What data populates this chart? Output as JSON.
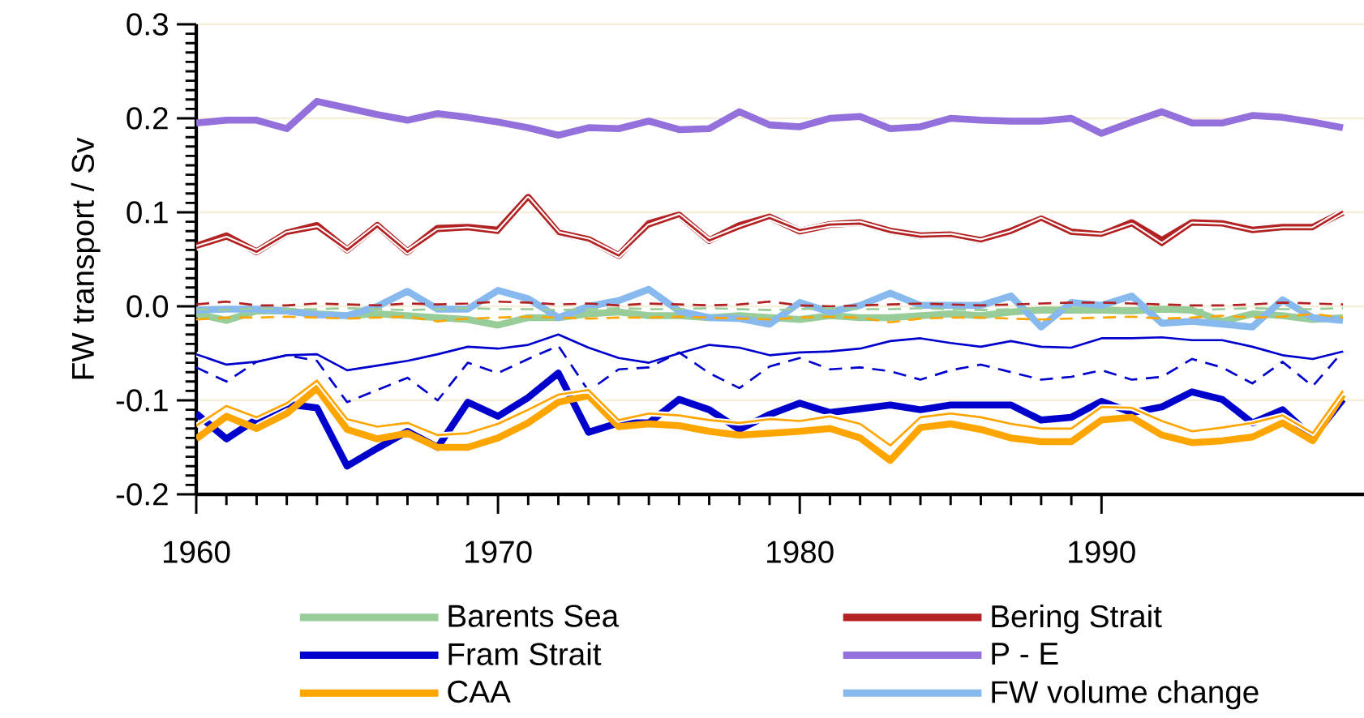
{
  "chart_data": {
    "type": "line",
    "ylabel": "FW transport / Sv",
    "x": [
      1960,
      1961,
      1962,
      1963,
      1964,
      1965,
      1966,
      1967,
      1968,
      1969,
      1970,
      1971,
      1972,
      1973,
      1974,
      1975,
      1976,
      1977,
      1978,
      1979,
      1980,
      1981,
      1982,
      1983,
      1984,
      1985,
      1986,
      1987,
      1988,
      1989,
      1990,
      1991,
      1992,
      1993,
      1994,
      1995,
      1996,
      1997,
      1998
    ],
    "xlim": [
      1960,
      1998.7
    ],
    "ylim": [
      -0.2,
      0.3
    ],
    "xticks": [
      1960,
      1970,
      1980,
      1990
    ],
    "yticks": [
      {
        "value": -0.2,
        "label": "-0.2"
      },
      {
        "value": -0.1,
        "label": "-0.1"
      },
      {
        "value": 0,
        "label": "0.0"
      },
      {
        "value": 0.1,
        "label": "0.1"
      },
      {
        "value": 0.2,
        "label": "0.2"
      },
      {
        "value": 0.3,
        "label": "0.3"
      }
    ],
    "grid": "y",
    "legend": "bottom",
    "series": [
      {
        "name": "Barents Sea",
        "color": "#98cc98",
        "values": [
          -0.008,
          -0.015,
          -0.005,
          -0.005,
          -0.008,
          -0.01,
          -0.008,
          -0.01,
          -0.012,
          -0.014,
          -0.02,
          -0.012,
          -0.012,
          -0.008,
          -0.006,
          -0.01,
          -0.01,
          -0.012,
          -0.01,
          -0.012,
          -0.014,
          -0.01,
          -0.012,
          -0.012,
          -0.01,
          -0.008,
          -0.01,
          -0.006,
          -0.004,
          -0.004,
          -0.004,
          -0.005,
          -0.003,
          -0.004,
          -0.016,
          -0.008,
          -0.01,
          -0.014,
          -0.012
        ]
      },
      {
        "name": "Bering Strait",
        "color": "#b22222",
        "values": [
          0.064,
          0.075,
          0.058,
          0.078,
          0.086,
          0.06,
          0.086,
          0.058,
          0.083,
          0.084,
          0.081,
          0.116,
          0.078,
          0.071,
          0.054,
          0.088,
          0.097,
          0.07,
          0.086,
          0.095,
          0.08,
          0.087,
          0.089,
          0.08,
          0.075,
          0.076,
          0.07,
          0.08,
          0.093,
          0.079,
          0.076,
          0.089,
          0.07,
          0.089,
          0.088,
          0.081,
          0.084,
          0.084,
          0.1
        ]
      },
      {
        "name": "Fram Strait",
        "color": "#0000cd",
        "values": [
          -0.114,
          -0.141,
          -0.12,
          -0.104,
          -0.108,
          -0.17,
          -0.151,
          -0.133,
          -0.15,
          -0.102,
          -0.117,
          -0.097,
          -0.071,
          -0.134,
          -0.124,
          -0.124,
          -0.099,
          -0.11,
          -0.131,
          -0.115,
          -0.103,
          -0.113,
          -0.109,
          -0.105,
          -0.11,
          -0.105,
          -0.105,
          -0.105,
          -0.121,
          -0.118,
          -0.101,
          -0.113,
          -0.107,
          -0.091,
          -0.099,
          -0.124,
          -0.11,
          -0.14,
          -0.099
        ]
      },
      {
        "name": "P - E",
        "color": "#9370db",
        "values": [
          0.195,
          0.198,
          0.198,
          0.189,
          0.218,
          0.211,
          0.204,
          0.198,
          0.205,
          0.201,
          0.196,
          0.19,
          0.182,
          0.19,
          0.189,
          0.197,
          0.188,
          0.189,
          0.207,
          0.193,
          0.191,
          0.2,
          0.202,
          0.189,
          0.191,
          0.2,
          0.198,
          0.197,
          0.197,
          0.2,
          0.184,
          0.196,
          0.207,
          0.195,
          0.195,
          0.203,
          0.201,
          0.196,
          0.19
        ]
      },
      {
        "name": "CAA",
        "color": "#ffa500",
        "values": [
          -0.141,
          -0.117,
          -0.13,
          -0.114,
          -0.087,
          -0.131,
          -0.141,
          -0.135,
          -0.15,
          -0.15,
          -0.14,
          -0.124,
          -0.102,
          -0.095,
          -0.128,
          -0.125,
          -0.127,
          -0.133,
          -0.137,
          -0.135,
          -0.133,
          -0.13,
          -0.14,
          -0.164,
          -0.129,
          -0.125,
          -0.131,
          -0.14,
          -0.144,
          -0.144,
          -0.121,
          -0.118,
          -0.137,
          -0.145,
          -0.143,
          -0.139,
          -0.124,
          -0.143,
          -0.094
        ]
      },
      {
        "name": "FW volume change",
        "color": "#87b9ef",
        "values": [
          -0.004,
          -0.003,
          -0.003,
          -0.005,
          -0.009,
          -0.01,
          0.0,
          0.016,
          -0.003,
          -0.003,
          0.017,
          0.008,
          -0.012,
          0.0,
          0.006,
          0.018,
          -0.005,
          -0.012,
          -0.013,
          -0.019,
          0.004,
          -0.006,
          0.001,
          0.014,
          0.001,
          0.001,
          0.001,
          0.011,
          -0.022,
          0.004,
          0.001,
          0.011,
          -0.018,
          -0.016,
          -0.019,
          -0.022,
          0.007,
          -0.012,
          -0.015
        ]
      },
      {
        "color": "#b22222",
        "values": [
          0.062,
          0.072,
          0.058,
          0.077,
          0.083,
          0.06,
          0.085,
          0.058,
          0.08,
          0.082,
          0.078,
          0.114,
          0.077,
          0.07,
          0.054,
          0.085,
          0.096,
          0.07,
          0.083,
          0.094,
          0.081,
          0.087,
          0.088,
          0.079,
          0.074,
          0.075,
          0.069,
          0.078,
          0.092,
          0.077,
          0.075,
          0.086,
          0.065,
          0.087,
          0.086,
          0.079,
          0.082,
          0.082,
          0.101
        ]
      },
      {
        "color": "#b22222",
        "line_style": "dashed",
        "values": [
          0.002,
          0.005,
          0.001,
          0.001,
          0.003,
          0.002,
          0.001,
          0.003,
          0.002,
          0.003,
          0.005,
          0.004,
          0.002,
          0.003,
          0.001,
          0.003,
          0.002,
          0.001,
          0.002,
          0.005,
          0.001,
          0.0,
          0.001,
          0.002,
          0.003,
          0.002,
          0.001,
          0.002,
          0.003,
          0.004,
          0.004,
          0.003,
          0.002,
          0.001,
          0.001,
          0.002,
          0.004,
          0.003,
          0.002
        ]
      },
      {
        "color": "#98cc98",
        "line_style": "dashed",
        "values": [
          -0.003,
          -0.004,
          -0.002,
          -0.003,
          -0.003,
          -0.002,
          -0.003,
          -0.004,
          -0.003,
          -0.002,
          -0.003,
          -0.003,
          -0.004,
          -0.003,
          -0.002,
          -0.003,
          -0.003,
          -0.002,
          -0.003,
          -0.004,
          -0.003,
          -0.002,
          -0.003,
          -0.003,
          -0.002,
          -0.003,
          -0.004,
          -0.003,
          -0.002,
          -0.003,
          -0.003,
          -0.002,
          -0.003,
          -0.004,
          -0.003,
          -0.002,
          -0.003,
          -0.003,
          -0.002
        ]
      },
      {
        "color": "#ffa500",
        "line_style": "dashed",
        "values": [
          -0.014,
          -0.012,
          -0.012,
          -0.011,
          -0.012,
          -0.013,
          -0.012,
          -0.011,
          -0.016,
          -0.013,
          -0.012,
          -0.011,
          -0.012,
          -0.013,
          -0.012,
          -0.012,
          -0.011,
          -0.012,
          -0.013,
          -0.014,
          -0.012,
          -0.011,
          -0.012,
          -0.017,
          -0.013,
          -0.012,
          -0.012,
          -0.013,
          -0.014,
          -0.013,
          -0.012,
          -0.011,
          -0.013,
          -0.012,
          -0.01,
          -0.012,
          -0.011,
          -0.008,
          -0.012
        ]
      },
      {
        "color": "#0000cd",
        "values": [
          -0.051,
          -0.062,
          -0.059,
          -0.052,
          -0.051,
          -0.068,
          -0.063,
          -0.058,
          -0.051,
          -0.043,
          -0.045,
          -0.041,
          -0.03,
          -0.044,
          -0.055,
          -0.06,
          -0.05,
          -0.041,
          -0.044,
          -0.052,
          -0.049,
          -0.048,
          -0.045,
          -0.037,
          -0.034,
          -0.039,
          -0.043,
          -0.037,
          -0.043,
          -0.044,
          -0.034,
          -0.034,
          -0.033,
          -0.036,
          -0.036,
          -0.043,
          -0.052,
          -0.056,
          -0.048
        ]
      },
      {
        "color": "#0000cd",
        "line_style": "dashed",
        "values": [
          -0.065,
          -0.08,
          -0.059,
          -0.052,
          -0.058,
          -0.102,
          -0.089,
          -0.076,
          -0.1,
          -0.06,
          -0.071,
          -0.056,
          -0.042,
          -0.09,
          -0.067,
          -0.065,
          -0.049,
          -0.071,
          -0.087,
          -0.064,
          -0.055,
          -0.067,
          -0.065,
          -0.069,
          -0.078,
          -0.068,
          -0.062,
          -0.07,
          -0.078,
          -0.075,
          -0.068,
          -0.078,
          -0.075,
          -0.056,
          -0.065,
          -0.082,
          -0.059,
          -0.085,
          -0.048
        ]
      },
      {
        "color": "#ffa500",
        "values": [
          -0.127,
          -0.106,
          -0.118,
          -0.103,
          -0.079,
          -0.12,
          -0.128,
          -0.124,
          -0.137,
          -0.135,
          -0.125,
          -0.11,
          -0.094,
          -0.089,
          -0.121,
          -0.114,
          -0.116,
          -0.121,
          -0.124,
          -0.12,
          -0.122,
          -0.117,
          -0.125,
          -0.148,
          -0.118,
          -0.114,
          -0.118,
          -0.125,
          -0.13,
          -0.13,
          -0.107,
          -0.108,
          -0.122,
          -0.133,
          -0.129,
          -0.124,
          -0.116,
          -0.135,
          -0.09
        ]
      }
    ]
  }
}
